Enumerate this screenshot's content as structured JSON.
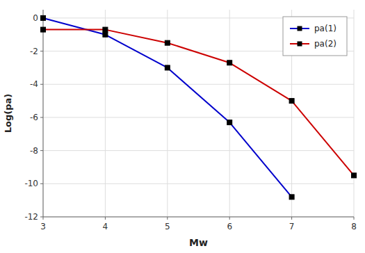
{
  "chart_data": {
    "type": "line",
    "xlabel": "Mw",
    "ylabel": "Log(pa)",
    "series": [
      {
        "name": "pa(1)",
        "color": "#0000cc",
        "marker": "square",
        "x": [
          3,
          4,
          5,
          6,
          7
        ],
        "values": [
          0,
          -1,
          -3,
          -6.3,
          -10.8
        ]
      },
      {
        "name": "pa(2)",
        "color": "#cc0000",
        "marker": "square",
        "x": [
          3,
          4,
          5,
          6,
          7,
          8
        ],
        "values": [
          -0.7,
          -0.7,
          -1.5,
          -2.7,
          -5.0,
          -9.5
        ]
      }
    ],
    "xlim": [
      3,
      8
    ],
    "ylim": [
      -12,
      0.5
    ],
    "xticks": [
      3,
      4,
      5,
      6,
      7,
      8
    ],
    "yticks": [
      0,
      -2,
      -4,
      -6,
      -8,
      -10,
      -12
    ],
    "grid": true,
    "legend": "upper right"
  }
}
